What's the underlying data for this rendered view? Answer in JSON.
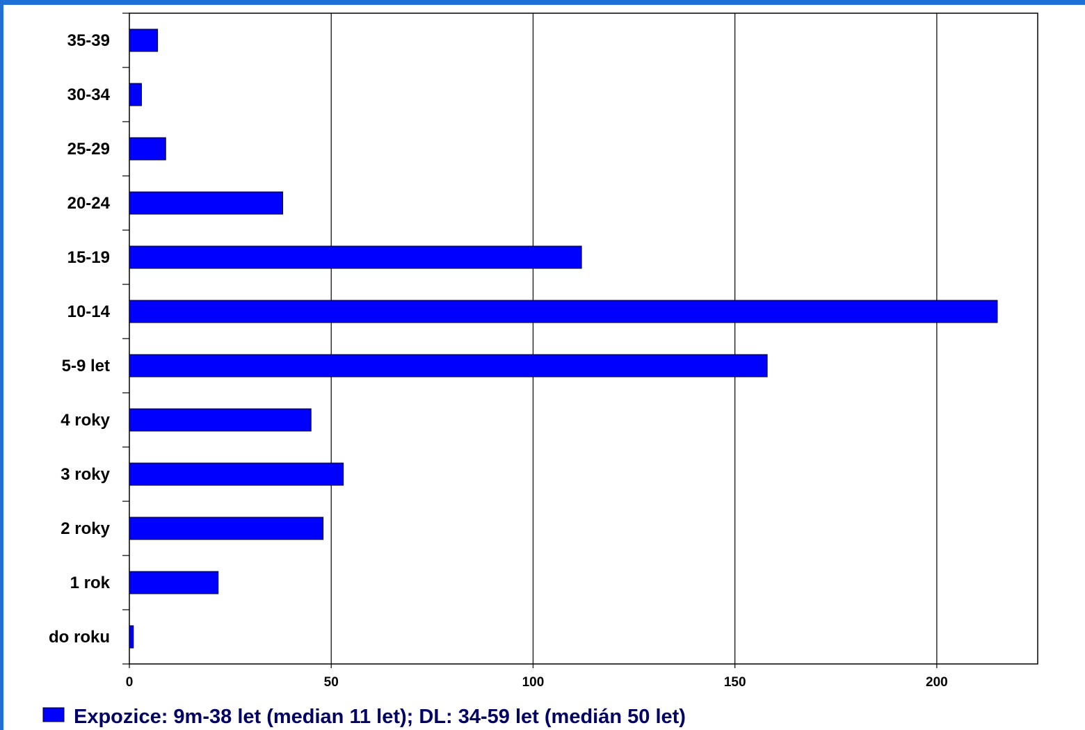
{
  "colors": {
    "frame": "#1f6fd6",
    "bar": "#0000ff",
    "bar_stroke": "#000000",
    "legend_text": "#000066",
    "grid": "#000000"
  },
  "chart_data": {
    "type": "bar",
    "orientation": "horizontal",
    "categories": [
      "do roku",
      "1 rok",
      "2 roky",
      "3 roky",
      "4 roky",
      "5-9 let",
      "10-14",
      "15-19",
      "20-24",
      "25-29",
      "30-34",
      "35-39"
    ],
    "series": [
      {
        "name": "Expozice: 9m-38 let (median 11 let); DL: 34-59 let (medián 50 let)",
        "values": [
          1,
          22,
          48,
          53,
          45,
          158,
          215,
          112,
          38,
          9,
          3,
          7
        ]
      }
    ],
    "x_ticks": [
      "0",
      "50",
      "100",
      "150",
      "200"
    ],
    "xlim": [
      0,
      225
    ],
    "title": "",
    "xlabel": "",
    "ylabel": "",
    "grid": "vertical",
    "legend_position": "bottom"
  }
}
